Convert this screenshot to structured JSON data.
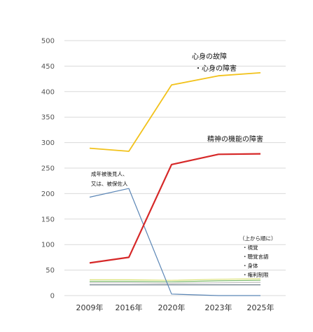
{
  "chart_data": {
    "type": "line",
    "categories": [
      "2009年",
      "2016年",
      "2020年",
      "2023年",
      "2025年"
    ],
    "ylim": [
      0,
      500
    ],
    "yticks": [
      0,
      50,
      100,
      150,
      200,
      250,
      300,
      350,
      400,
      450,
      500
    ],
    "grid": true,
    "series": [
      {
        "key": "mind_body",
        "color": "#f2c21b",
        "values": [
          289,
          283,
          413,
          431,
          437
        ]
      },
      {
        "key": "mental",
        "color": "#d62828",
        "values": [
          64,
          75,
          257,
          277,
          278
        ]
      },
      {
        "key": "guardianship",
        "color": "#5b86b6",
        "values": [
          193,
          210,
          3,
          0,
          0
        ]
      },
      {
        "key": "visual",
        "color": "#dce37a",
        "values": [
          31,
          31,
          30,
          32,
          33
        ]
      },
      {
        "key": "hearing_speech",
        "color": "#7dbb6a",
        "values": [
          28,
          28,
          27,
          29,
          30
        ]
      },
      {
        "key": "physical",
        "color": "#bfbfbf",
        "values": [
          25,
          25,
          24,
          25,
          26
        ]
      },
      {
        "key": "rights",
        "color": "#5a6b78",
        "values": [
          21,
          21,
          21,
          21,
          21
        ]
      }
    ],
    "annotations": {
      "mind_body": [
        "心身の故障",
        "・心身の障害"
      ],
      "mental": [
        "精神の機能の障害"
      ],
      "guardianship": [
        "成年被後見人、",
        "又は、被保佐人"
      ],
      "others_header": "（上から順に）",
      "others": [
        "・視覚",
        "・聴覚言語",
        "・身体",
        "・権利制限"
      ]
    }
  }
}
